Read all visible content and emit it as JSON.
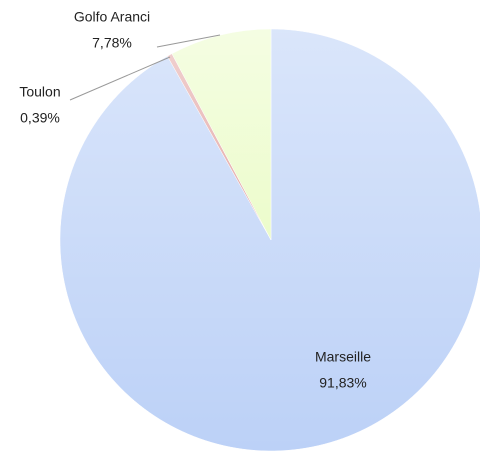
{
  "chart_data": {
    "type": "pie",
    "categories": [
      "Marseille",
      "Toulon",
      "Golfo Aranci"
    ],
    "values": [
      91.83,
      0.39,
      7.78
    ],
    "value_labels": [
      "91,83%",
      "0,39%",
      "7,78%"
    ],
    "colors": [
      "#bcd1f7",
      "#e3a7a5",
      "#ecfccb"
    ]
  }
}
